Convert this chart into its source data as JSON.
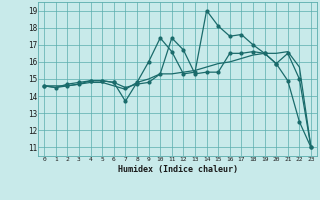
{
  "background_color": "#c8eaea",
  "grid_color": "#5aadad",
  "line_color": "#1a6b6b",
  "xlabel": "Humidex (Indice chaleur)",
  "ylabel_ticks": [
    11,
    12,
    13,
    14,
    15,
    16,
    17,
    18,
    19
  ],
  "xlim": [
    -0.5,
    23.5
  ],
  "ylim": [
    10.5,
    19.5
  ],
  "xticks": [
    0,
    1,
    2,
    3,
    4,
    5,
    6,
    7,
    8,
    9,
    10,
    11,
    12,
    13,
    14,
    15,
    16,
    17,
    18,
    19,
    20,
    21,
    22,
    23
  ],
  "line1_x": [
    0,
    1,
    2,
    3,
    4,
    5,
    6,
    7,
    8,
    9,
    10,
    11,
    12,
    13,
    14,
    15,
    16,
    17,
    18,
    19,
    20,
    21,
    22,
    23
  ],
  "line1_y": [
    14.6,
    14.5,
    14.6,
    14.7,
    14.8,
    14.8,
    14.6,
    14.4,
    14.8,
    15.0,
    15.3,
    15.3,
    15.4,
    15.5,
    15.7,
    15.9,
    16.0,
    16.2,
    16.4,
    16.5,
    16.5,
    16.6,
    15.7,
    11.0
  ],
  "line2_x": [
    0,
    1,
    2,
    3,
    4,
    5,
    6,
    7,
    8,
    9,
    10,
    11,
    12,
    13,
    14,
    15,
    16,
    17,
    18,
    19,
    20,
    21,
    22,
    23
  ],
  "line2_y": [
    14.6,
    14.5,
    14.7,
    14.8,
    14.9,
    14.9,
    14.8,
    13.7,
    14.8,
    16.0,
    17.4,
    16.6,
    15.3,
    15.4,
    19.0,
    18.1,
    17.5,
    17.6,
    17.0,
    16.5,
    15.9,
    14.9,
    12.5,
    11.0
  ],
  "line3_x": [
    0,
    2,
    3,
    4,
    5,
    6,
    7,
    8,
    9,
    10,
    11,
    12,
    13,
    14,
    15,
    16,
    17,
    18,
    19,
    20,
    21,
    22,
    23
  ],
  "line3_y": [
    14.6,
    14.6,
    14.7,
    14.9,
    14.9,
    14.8,
    14.5,
    14.7,
    14.8,
    15.3,
    17.4,
    16.7,
    15.3,
    15.4,
    15.4,
    16.5,
    16.5,
    16.6,
    16.5,
    15.9,
    16.5,
    15.0,
    11.0
  ]
}
